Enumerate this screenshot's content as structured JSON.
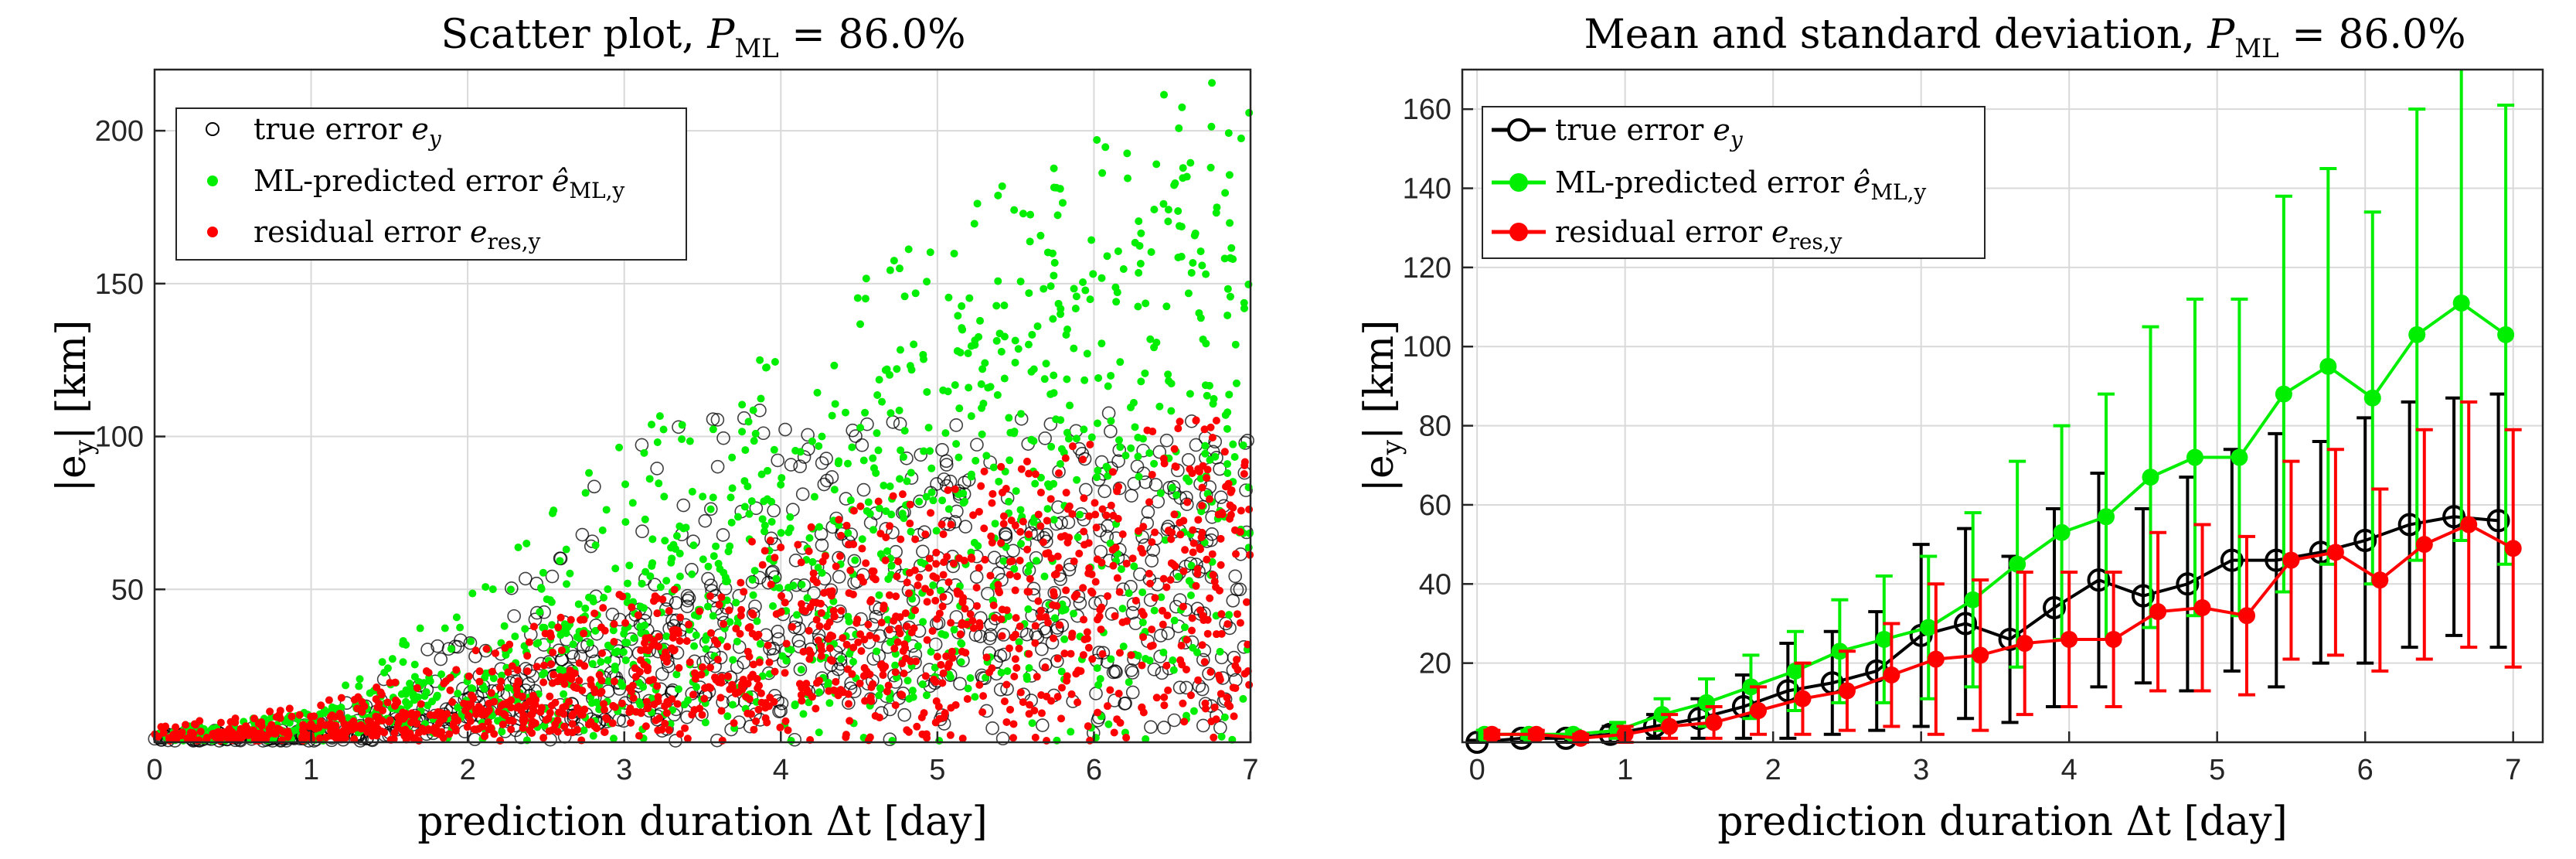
{
  "chart_data": [
    {
      "type": "scatter",
      "title": "Scatter plot, P_ML = 86.0%",
      "title_main": "Scatter plot, ",
      "title_symbol": "P",
      "title_subscript": "ML",
      "title_value": " = 86.0%",
      "xlabel": "prediction duration Δt [day]",
      "ylabel": "|e_y| [km]",
      "ylabel_text": "|e",
      "ylabel_sub": "y",
      "ylabel_unit": "| [km]",
      "xlim": [
        0,
        7
      ],
      "ylim": [
        0,
        220
      ],
      "xticks": [
        0,
        1,
        2,
        3,
        4,
        5,
        6,
        7
      ],
      "yticks": [
        50,
        100,
        150,
        200
      ],
      "grid": true,
      "legend_position": "top-left",
      "series": [
        {
          "name": "true error e_y",
          "legend_label": "true error ",
          "legend_symbol": "e",
          "legend_subscript": "y",
          "color": "#000000",
          "marker": "open-circle",
          "trend_mean": [
            [
              0,
              1
            ],
            [
              0.5,
              1.5
            ],
            [
              1,
              2
            ],
            [
              1.5,
              4
            ],
            [
              2,
              9
            ],
            [
              2.5,
              15
            ],
            [
              3,
              25
            ],
            [
              3.5,
              28
            ],
            [
              4,
              38
            ],
            [
              4.5,
              40
            ],
            [
              5,
              45
            ],
            [
              5.5,
              48
            ],
            [
              6,
              52
            ],
            [
              6.5,
              56
            ],
            [
              7,
              55
            ]
          ],
          "upper_envelope": [
            [
              0,
              3
            ],
            [
              1,
              6
            ],
            [
              2,
              40
            ],
            [
              2.5,
              60
            ],
            [
              3,
              110
            ],
            [
              3.5,
              105
            ],
            [
              4,
              110
            ],
            [
              5,
              105
            ],
            [
              6,
              108
            ],
            [
              7,
              105
            ]
          ]
        },
        {
          "name": "ML-predicted error ê_ML,y",
          "legend_label": "ML-predicted error ",
          "legend_symbol": "ê",
          "legend_subscript": "ML,y",
          "color": "#00ee00",
          "marker": "filled-dot",
          "trend_mean": [
            [
              0,
              2
            ],
            [
              0.5,
              3
            ],
            [
              1,
              6
            ],
            [
              1.5,
              10
            ],
            [
              2,
              14
            ],
            [
              2.5,
              22
            ],
            [
              3,
              30
            ],
            [
              3.5,
              42
            ],
            [
              4,
              53
            ],
            [
              4.5,
              66
            ],
            [
              5,
              72
            ],
            [
              5.5,
              88
            ],
            [
              6,
              92
            ],
            [
              6.5,
              105
            ],
            [
              7,
              108
            ]
          ],
          "upper_envelope": [
            [
              0,
              4
            ],
            [
              1,
              10
            ],
            [
              2,
              50
            ],
            [
              3,
              100
            ],
            [
              4,
              130
            ],
            [
              5,
              170
            ],
            [
              6,
              200
            ],
            [
              6.6,
              220
            ],
            [
              7,
              215
            ]
          ]
        },
        {
          "name": "residual error e_res,y",
          "legend_label": "residual error ",
          "legend_symbol": "e",
          "legend_subscript": "res,y",
          "color": "#ff0000",
          "marker": "filled-dot",
          "trend_mean": [
            [
              0,
              2
            ],
            [
              0.5,
              2
            ],
            [
              1,
              3
            ],
            [
              1.5,
              5
            ],
            [
              2,
              8
            ],
            [
              2.5,
              12
            ],
            [
              3,
              18
            ],
            [
              3.5,
              22
            ],
            [
              4,
              25
            ],
            [
              4.5,
              30
            ],
            [
              5,
              34
            ],
            [
              5.5,
              40
            ],
            [
              6,
              45
            ],
            [
              6.5,
              50
            ],
            [
              7,
              52
            ]
          ],
          "upper_envelope": [
            [
              0,
              5
            ],
            [
              1,
              12
            ],
            [
              2,
              30
            ],
            [
              3,
              50
            ],
            [
              4,
              70
            ],
            [
              5,
              85
            ],
            [
              6,
              100
            ],
            [
              7,
              110
            ]
          ]
        }
      ]
    },
    {
      "type": "line",
      "title": "Mean and standard deviation, P_ML = 86.0%",
      "title_main": "Mean and standard deviation, ",
      "title_symbol": "P",
      "title_subscript": "ML",
      "title_value": " = 86.0%",
      "xlabel": "prediction duration Δt [day]",
      "ylabel": "|e_y| [km]",
      "ylabel_text": "|e",
      "ylabel_sub": "y",
      "ylabel_unit": "| [km]",
      "xlim": [
        -0.1,
        7.2
      ],
      "ylim": [
        0,
        170
      ],
      "xticks": [
        0,
        1,
        2,
        3,
        4,
        5,
        6,
        7
      ],
      "yticks": [
        20,
        40,
        60,
        80,
        100,
        120,
        140,
        160
      ],
      "grid": true,
      "legend_position": "top-left",
      "series": [
        {
          "name": "true error e_y",
          "legend_label": "true error ",
          "legend_symbol": "e",
          "legend_subscript": "y",
          "color": "#000000",
          "marker": "open-circle",
          "x": [
            0.0,
            0.3,
            0.6,
            0.9,
            1.2,
            1.5,
            1.8,
            2.1,
            2.4,
            2.7,
            3.0,
            3.3,
            3.6,
            3.9,
            4.2,
            4.5,
            4.8,
            5.1,
            5.4,
            5.7,
            6.0,
            6.3,
            6.6,
            6.9
          ],
          "mean": [
            0,
            1,
            1,
            2,
            4,
            6,
            9,
            13,
            15,
            18,
            27,
            30,
            26,
            34,
            41,
            37,
            40,
            46,
            46,
            48,
            51,
            55,
            57,
            56
          ],
          "std": [
            0.5,
            1,
            1,
            2,
            3,
            5,
            8,
            12,
            13,
            15,
            23,
            24,
            21,
            25,
            27,
            22,
            27,
            28,
            32,
            28,
            31,
            31,
            30,
            32
          ]
        },
        {
          "name": "ML-predicted error ê_ML,y",
          "legend_label": "ML-predicted error ",
          "legend_symbol": "ê",
          "legend_subscript": "ML,y",
          "color": "#00ee00",
          "marker": "filled-dot",
          "x": [
            0.05,
            0.35,
            0.65,
            0.95,
            1.25,
            1.55,
            1.85,
            2.15,
            2.45,
            2.75,
            3.05,
            3.35,
            3.65,
            3.95,
            4.25,
            4.55,
            4.85,
            5.15,
            5.45,
            5.75,
            6.05,
            6.35,
            6.65,
            6.95
          ],
          "mean": [
            2,
            2,
            2,
            3,
            7,
            10,
            14,
            18,
            23,
            26,
            29,
            36,
            45,
            53,
            57,
            67,
            72,
            72,
            88,
            95,
            87,
            103,
            111,
            103
          ],
          "std": [
            1,
            1,
            1,
            2,
            4,
            6,
            8,
            10,
            13,
            16,
            18,
            22,
            26,
            27,
            31,
            38,
            40,
            40,
            50,
            50,
            47,
            57,
            60,
            58
          ]
        },
        {
          "name": "residual error e_res,y",
          "legend_label": "residual error ",
          "legend_symbol": "e",
          "legend_subscript": "res,y",
          "color": "#ff0000",
          "marker": "filled-dot",
          "x": [
            0.1,
            0.4,
            0.7,
            1.0,
            1.3,
            1.6,
            1.9,
            2.2,
            2.5,
            2.8,
            3.1,
            3.4,
            3.7,
            4.0,
            4.3,
            4.6,
            4.9,
            5.2,
            5.5,
            5.8,
            6.1,
            6.4,
            6.7,
            7.0
          ],
          "mean": [
            2,
            2,
            1,
            2,
            4,
            5,
            8,
            11,
            13,
            17,
            21,
            22,
            25,
            26,
            26,
            33,
            34,
            32,
            46,
            48,
            41,
            50,
            55,
            49
          ],
          "std": [
            1,
            1,
            1,
            2,
            3,
            4,
            6,
            9,
            10,
            13,
            19,
            19,
            18,
            17,
            17,
            20,
            21,
            20,
            25,
            26,
            23,
            29,
            31,
            30
          ]
        }
      ]
    }
  ]
}
